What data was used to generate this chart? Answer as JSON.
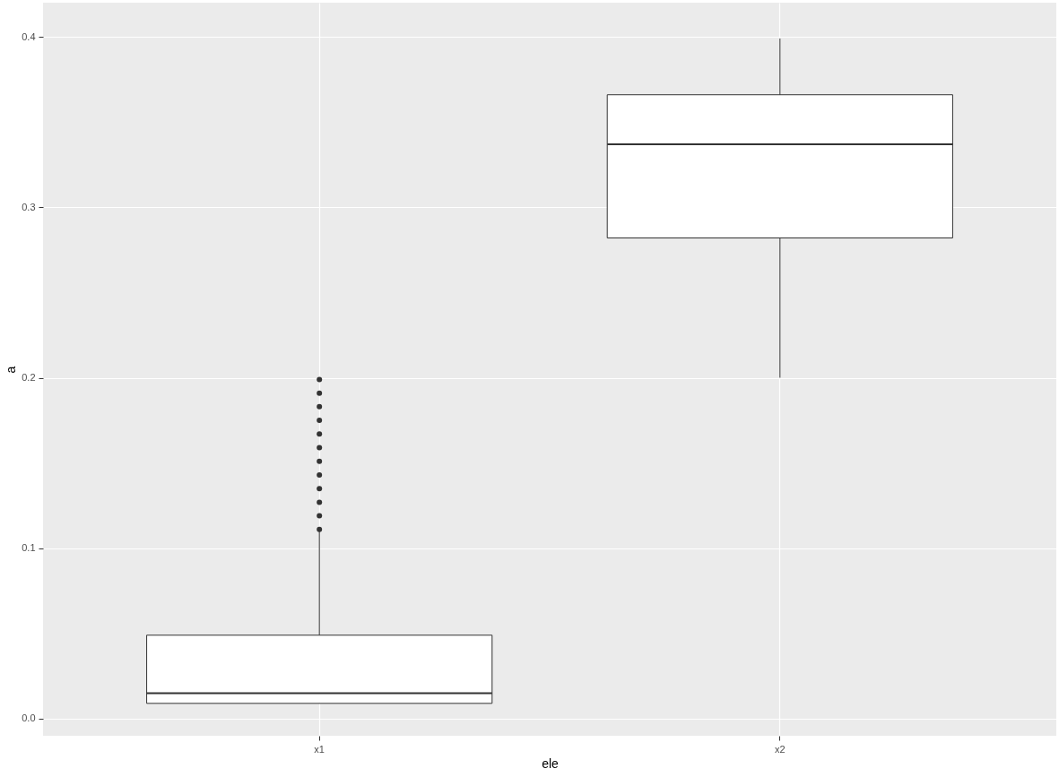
{
  "chart_data": {
    "type": "box",
    "xlabel": "ele",
    "ylabel": "a",
    "categories": [
      "x1",
      "x2"
    ],
    "boxes": [
      {
        "low": 0.009,
        "q1": 0.009,
        "median": 0.015,
        "q3": 0.049,
        "high": 0.11,
        "outliers": [
          0.111,
          0.119,
          0.127,
          0.135,
          0.143,
          0.151,
          0.159,
          0.167,
          0.175,
          0.183,
          0.191,
          0.199
        ]
      },
      {
        "low": 0.2,
        "q1": 0.282,
        "median": 0.337,
        "q3": 0.366,
        "high": 0.399
      }
    ],
    "ylim": [
      -0.01,
      0.42
    ],
    "yticks": [
      {
        "value": 0,
        "label": "0.0"
      },
      {
        "value": 0.1,
        "label": "0.1"
      },
      {
        "value": 0.2,
        "label": "0.2"
      },
      {
        "value": 0.3,
        "label": "0.3"
      },
      {
        "value": 0.4,
        "label": "0.4"
      }
    ],
    "grid": true
  }
}
